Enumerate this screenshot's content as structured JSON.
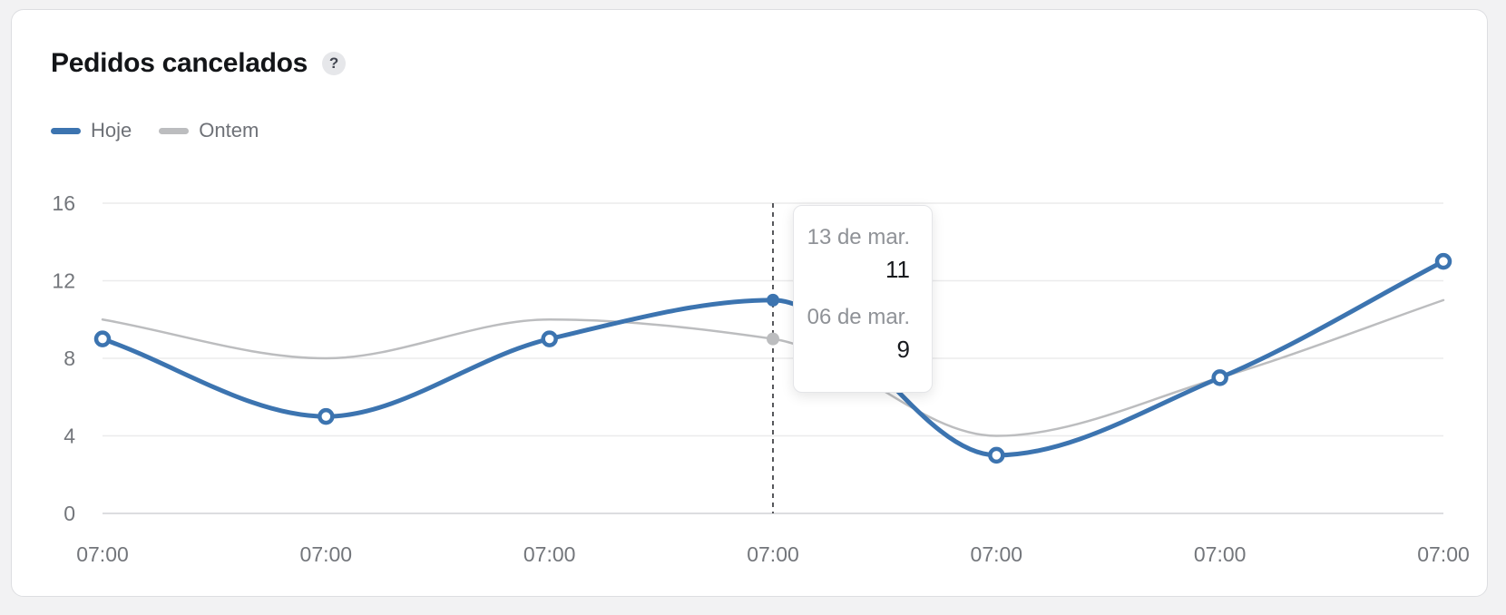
{
  "card": {
    "title": "Pedidos cancelados",
    "help_badge": "?"
  },
  "chart_data": {
    "type": "line",
    "title": "Pedidos cancelados",
    "x_labels": [
      "07:00",
      "07:00",
      "07:00",
      "07:00",
      "07:00",
      "07:00",
      "07:00"
    ],
    "y_ticks": [
      0,
      4,
      8,
      12,
      16
    ],
    "ylim": [
      0,
      16
    ],
    "grid": "horizontal",
    "legend_position": "top-left",
    "series": [
      {
        "name": "Hoje",
        "color": "#3c74b0",
        "values": [
          9,
          5,
          9,
          11,
          3,
          7,
          13
        ]
      },
      {
        "name": "Ontem",
        "color": "#bcbdbf",
        "values": [
          10,
          8,
          10,
          9,
          4,
          7,
          11
        ]
      }
    ],
    "hover_index": 3,
    "tooltip": {
      "entries": [
        {
          "label": "13 de mar.",
          "value": "11"
        },
        {
          "label": "06 de mar.",
          "value": "9"
        }
      ]
    }
  },
  "colors": {
    "accent_blue": "#3c74b0",
    "neutral_gray": "#bcbdbf",
    "cursor_dash": "#56575b",
    "gridline": "#ebebec",
    "axis_text": "#73767b"
  }
}
